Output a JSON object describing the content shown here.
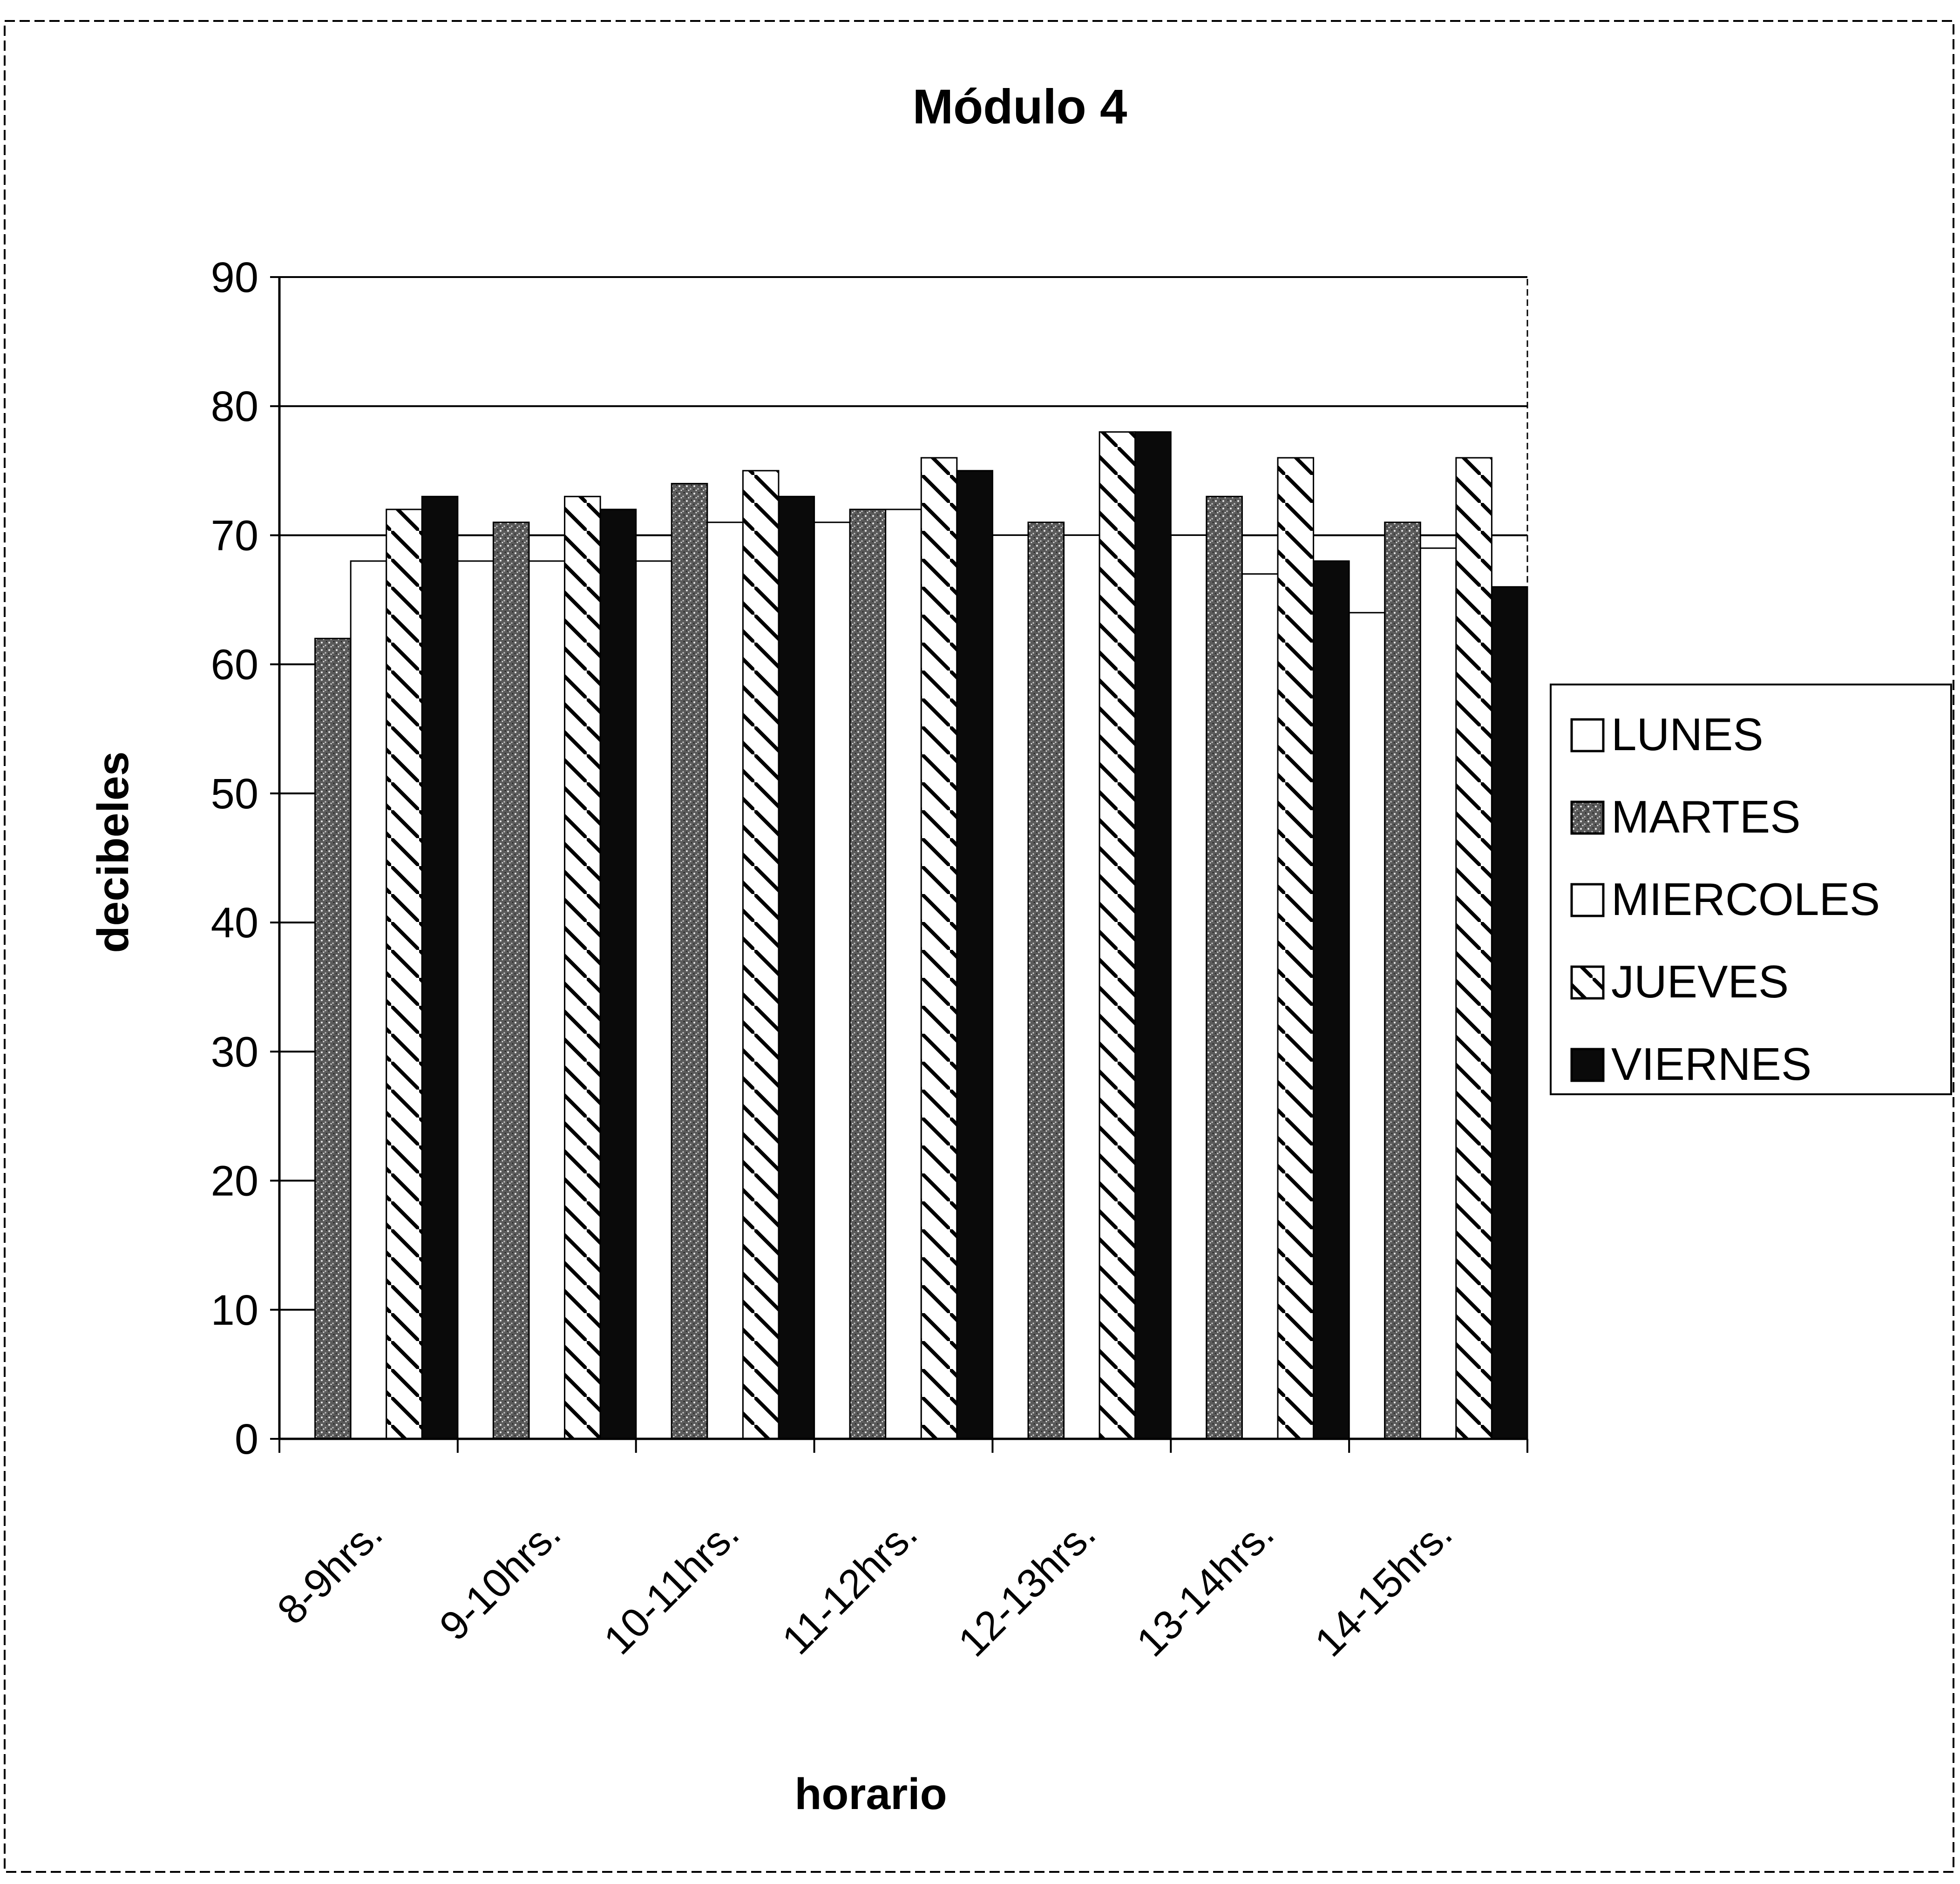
{
  "chart_data": {
    "type": "bar",
    "title": "Módulo 4",
    "xlabel": "horario",
    "ylabel": "decibeles",
    "ylim": [
      0,
      90
    ],
    "yticks": [
      0,
      10,
      20,
      30,
      40,
      50,
      60,
      70,
      80,
      90
    ],
    "grid": true,
    "legend_position": "right",
    "categories": [
      "8-9hrs.",
      "9-10hrs.",
      "10-11hrs.",
      "11-12hrs.",
      "12-13hrs.",
      "13-14hrs.",
      "14-15hrs."
    ],
    "series": [
      {
        "name": "LUNES",
        "pattern": "white",
        "values": [
          0,
          68,
          68,
          71,
          70,
          70,
          64
        ]
      },
      {
        "name": "MARTES",
        "pattern": "speckled-gray",
        "values": [
          62,
          71,
          74,
          72,
          71,
          73,
          71
        ]
      },
      {
        "name": "MIERCOLES",
        "pattern": "white",
        "values": [
          68,
          68,
          71,
          72,
          70,
          67,
          69
        ]
      },
      {
        "name": "JUEVES",
        "pattern": "hatched",
        "values": [
          72,
          73,
          75,
          76,
          78,
          76,
          76
        ]
      },
      {
        "name": "VIERNES",
        "pattern": "black",
        "values": [
          73,
          72,
          73,
          75,
          78,
          68,
          66
        ]
      }
    ]
  },
  "colors": {
    "white": "#ffffff",
    "black": "#0a0a0a",
    "speckled": "#3a3a3a",
    "frame": "#000000"
  }
}
